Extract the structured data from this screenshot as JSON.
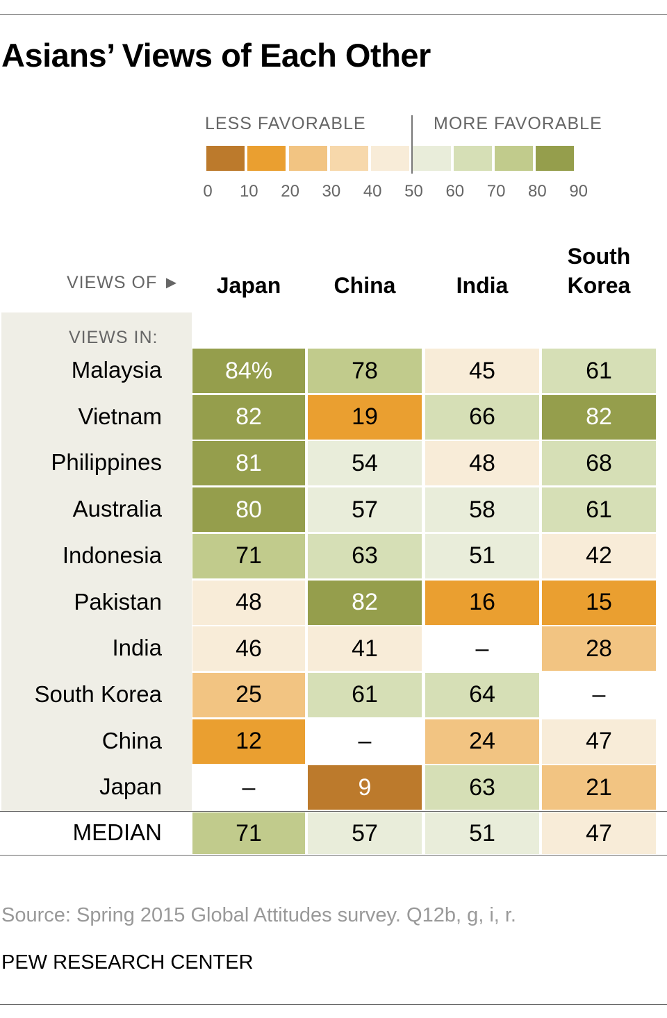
{
  "title": "Asians’ Views of Each Other",
  "legend": {
    "less": "LESS FAVORABLE",
    "more": "MORE FAVORABLE",
    "ticks": [
      "0",
      "10",
      "20",
      "30",
      "40",
      "50",
      "60",
      "70",
      "80",
      "90"
    ],
    "colors": [
      "#BC7A2C",
      "#EA9F30",
      "#F2C482",
      "#F7D8AB",
      "#F8ECD8",
      "#E9EDDA",
      "#D6DFB6",
      "#C1CB8C",
      "#959E4C"
    ]
  },
  "views_of_label": "VIEWS OF ►",
  "views_in_label": "VIEWS IN:",
  "chart_data": {
    "type": "heatmap",
    "title": "Asians’ Views of Each Other",
    "columns": [
      "Japan",
      "China",
      "India",
      "South Korea"
    ],
    "rows": [
      "Malaysia",
      "Vietnam",
      "Philippines",
      "Australia",
      "Indonesia",
      "Pakistan",
      "India",
      "South Korea",
      "China",
      "Japan"
    ],
    "values": [
      [
        84,
        78,
        45,
        61
      ],
      [
        82,
        19,
        66,
        82
      ],
      [
        81,
        54,
        48,
        68
      ],
      [
        80,
        57,
        58,
        61
      ],
      [
        71,
        63,
        51,
        42
      ],
      [
        48,
        82,
        16,
        15
      ],
      [
        46,
        41,
        null,
        28
      ],
      [
        25,
        61,
        64,
        null
      ],
      [
        12,
        null,
        24,
        47
      ],
      [
        null,
        9,
        63,
        21
      ]
    ],
    "median_label": "MEDIAN",
    "median": [
      71,
      57,
      51,
      47
    ],
    "unit": "%",
    "null_text": "–"
  },
  "column_headers": [
    "Japan",
    "China",
    "India",
    "South\nKorea"
  ],
  "source": "Source: Spring 2015 Global Attitudes survey. Q12b, g, i, r.",
  "brand": "PEW RESEARCH CENTER"
}
